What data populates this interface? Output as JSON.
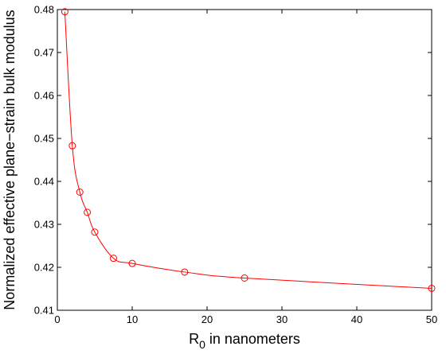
{
  "chart_data": {
    "type": "line",
    "title": "",
    "xlabel_main": "R",
    "xlabel_sub": "0",
    "xlabel_rest": " in nanometers",
    "ylabel": "Normalized effective plane−strain bulk modulus",
    "xlim": [
      0,
      50
    ],
    "ylim": [
      0.41,
      0.48
    ],
    "xticks": [
      "0",
      "10",
      "20",
      "30",
      "40",
      "50"
    ],
    "yticks": [
      "0.41",
      "0.42",
      "0.43",
      "0.44",
      "0.45",
      "0.46",
      "0.47",
      "0.48"
    ],
    "grid": false,
    "legend": "none",
    "series": [
      {
        "color": "#ff0000",
        "marker": "circle-open",
        "x": [
          1,
          2,
          3,
          4,
          5,
          7.5,
          10,
          17,
          25,
          50
        ],
        "y": [
          0.4795,
          0.4483,
          0.4375,
          0.4328,
          0.4282,
          0.4221,
          0.4209,
          0.4189,
          0.4175,
          0.4151
        ]
      }
    ]
  }
}
